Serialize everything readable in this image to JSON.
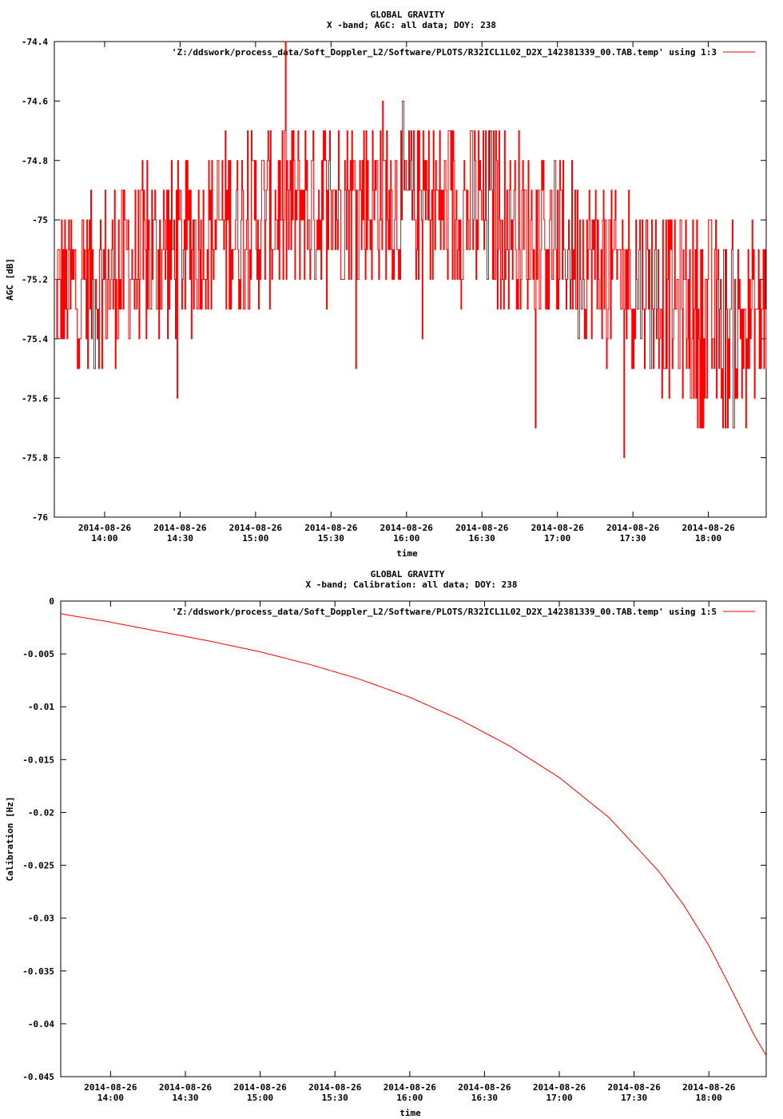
{
  "chart_data": [
    {
      "type": "line",
      "title": "GLOBAL GRAVITY",
      "subtitle": "X -band; AGC: all data; DOY: 238",
      "xlabel": "time",
      "ylabel": "AGC [dB]",
      "ylim": [
        -76,
        -74.4
      ],
      "yticks": [
        -74.4,
        -74.6,
        -74.8,
        -75,
        -75.2,
        -75.4,
        -75.6,
        -75.8,
        -76
      ],
      "ytick_labels": [
        "-74.4",
        "-74.6",
        "-74.8",
        "-75",
        "-75.2",
        "-75.4",
        "-75.6",
        "-75.8",
        "-76"
      ],
      "xlim": [
        "2014-08-26 13:40",
        "2014-08-26 18:23"
      ],
      "xticks": [
        "2014-08-26 14:00",
        "2014-08-26 14:30",
        "2014-08-26 15:00",
        "2014-08-26 15:30",
        "2014-08-26 16:00",
        "2014-08-26 16:30",
        "2014-08-26 17:00",
        "2014-08-26 17:30",
        "2014-08-26 18:00"
      ],
      "xtick_labels": [
        [
          "2014-08-26",
          "14:00"
        ],
        [
          "2014-08-26",
          "14:30"
        ],
        [
          "2014-08-26",
          "15:00"
        ],
        [
          "2014-08-26",
          "15:30"
        ],
        [
          "2014-08-26",
          "16:00"
        ],
        [
          "2014-08-26",
          "16:30"
        ],
        [
          "2014-08-26",
          "17:00"
        ],
        [
          "2014-08-26",
          "17:30"
        ],
        [
          "2014-08-26",
          "18:00"
        ]
      ],
      "legend": "top-right",
      "grid": false,
      "series": [
        {
          "name": "'Z:/ddswork/process_data/Soft_Doppler_L2/Software/PLOTS/R32ICL1L02_D2X_142381339_00.TAB.temp' using 1:3",
          "color": "#ff0000",
          "x": [
            "2014-08-26 13:40",
            "2014-08-26 13:50",
            "2014-08-26 14:00",
            "2014-08-26 14:10",
            "2014-08-26 14:20",
            "2014-08-26 14:30",
            "2014-08-26 14:40",
            "2014-08-26 14:50",
            "2014-08-26 15:00",
            "2014-08-26 15:10",
            "2014-08-26 15:20",
            "2014-08-26 15:30",
            "2014-08-26 15:40",
            "2014-08-26 15:50",
            "2014-08-26 16:00",
            "2014-08-26 16:10",
            "2014-08-26 16:20",
            "2014-08-26 16:30",
            "2014-08-26 16:40",
            "2014-08-26 16:50",
            "2014-08-26 17:00",
            "2014-08-26 17:10",
            "2014-08-26 17:20",
            "2014-08-26 17:30",
            "2014-08-26 17:40",
            "2014-08-26 17:50",
            "2014-08-26 18:00",
            "2014-08-26 18:10",
            "2014-08-26 18:23"
          ],
          "y": [
            -75.25,
            -75.22,
            -75.2,
            -75.15,
            -75.12,
            -75.1,
            -75.05,
            -75.02,
            -75.0,
            -74.98,
            -74.95,
            -74.93,
            -74.92,
            -74.92,
            -74.93,
            -74.94,
            -74.96,
            -74.98,
            -75.0,
            -75.05,
            -75.08,
            -75.12,
            -75.16,
            -75.2,
            -75.25,
            -75.3,
            -75.35,
            -75.38,
            -75.3
          ],
          "spread": [
            0.25,
            0.3,
            0.3,
            0.3,
            0.3,
            0.3,
            0.3,
            0.3,
            0.3,
            0.3,
            0.3,
            0.3,
            0.3,
            0.3,
            0.3,
            0.3,
            0.3,
            0.3,
            0.3,
            0.3,
            0.3,
            0.3,
            0.3,
            0.3,
            0.3,
            0.3,
            0.35,
            0.35,
            0.3
          ]
        }
      ]
    },
    {
      "type": "line",
      "title": "GLOBAL GRAVITY",
      "subtitle": "X -band; Calibration: all data; DOY: 238",
      "xlabel": "time",
      "ylabel": "Calibration [Hz]",
      "ylim": [
        -0.045,
        0
      ],
      "yticks": [
        0,
        -0.005,
        -0.01,
        -0.015,
        -0.02,
        -0.025,
        -0.03,
        -0.035,
        -0.04,
        -0.045
      ],
      "ytick_labels": [
        "0",
        "-0.005",
        "-0.01",
        "-0.015",
        "-0.02",
        "-0.025",
        "-0.03",
        "-0.035",
        "-0.04",
        "-0.045"
      ],
      "xlim": [
        "2014-08-26 13:40",
        "2014-08-26 18:23"
      ],
      "xticks": [
        "2014-08-26 14:00",
        "2014-08-26 14:30",
        "2014-08-26 15:00",
        "2014-08-26 15:30",
        "2014-08-26 16:00",
        "2014-08-26 16:30",
        "2014-08-26 17:00",
        "2014-08-26 17:30",
        "2014-08-26 18:00"
      ],
      "xtick_labels": [
        [
          "2014-08-26",
          "14:00"
        ],
        [
          "2014-08-26",
          "14:30"
        ],
        [
          "2014-08-26",
          "15:00"
        ],
        [
          "2014-08-26",
          "15:30"
        ],
        [
          "2014-08-26",
          "16:00"
        ],
        [
          "2014-08-26",
          "16:30"
        ],
        [
          "2014-08-26",
          "17:00"
        ],
        [
          "2014-08-26",
          "17:30"
        ],
        [
          "2014-08-26",
          "18:00"
        ]
      ],
      "legend": "top-right",
      "grid": false,
      "series": [
        {
          "name": "'Z:/ddswork/process_data/Soft_Doppler_L2/Software/PLOTS/R32ICL1L02_D2X_142381339_00.TAB.temp' using 1:5",
          "color": "#ff0000",
          "x": [
            "2014-08-26 13:40",
            "2014-08-26 14:00",
            "2014-08-26 14:20",
            "2014-08-26 14:40",
            "2014-08-26 15:00",
            "2014-08-26 15:20",
            "2014-08-26 15:40",
            "2014-08-26 16:00",
            "2014-08-26 16:20",
            "2014-08-26 16:40",
            "2014-08-26 17:00",
            "2014-08-26 17:20",
            "2014-08-26 17:40",
            "2014-08-26 17:50",
            "2014-08-26 18:00",
            "2014-08-26 18:10",
            "2014-08-26 18:18",
            "2014-08-26 18:23"
          ],
          "y": [
            -0.0012,
            -0.002,
            -0.0029,
            -0.0038,
            -0.0048,
            -0.006,
            -0.0074,
            -0.0091,
            -0.0112,
            -0.0137,
            -0.0167,
            -0.0205,
            -0.0256,
            -0.0288,
            -0.0326,
            -0.0372,
            -0.041,
            -0.043
          ]
        }
      ]
    }
  ]
}
